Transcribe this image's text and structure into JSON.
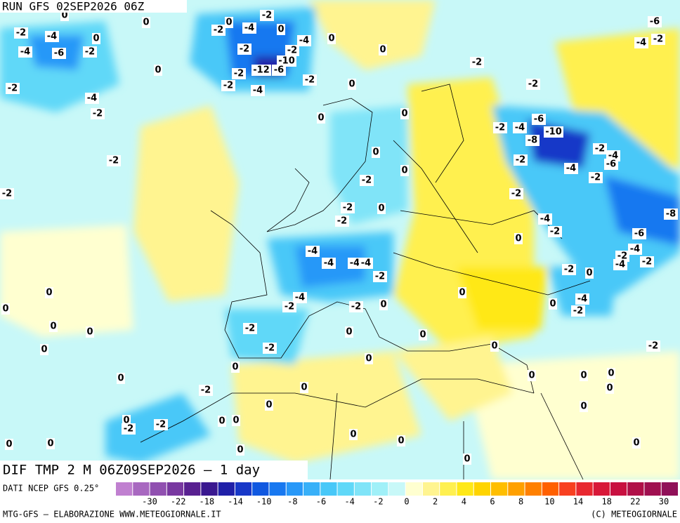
{
  "header": {
    "run": "RUN GFS 02SEP2026 06Z"
  },
  "map": {
    "title": "DIF TMP 2 M 06Z09SEP2026 — 1 day",
    "labels": [
      0,
      0,
      -2,
      -4,
      0,
      -4,
      -6,
      -2,
      0,
      -2,
      -4,
      -2,
      -2,
      -2,
      -2,
      0,
      -2,
      -4,
      0,
      -4,
      0,
      -2,
      -2,
      -10,
      -12,
      -6,
      -2,
      -2,
      -4,
      -2,
      0,
      0,
      -2,
      0,
      0,
      -2,
      -6,
      -4,
      -2,
      -2,
      -4,
      -6,
      -10,
      -8,
      -2,
      -4,
      -2,
      -4,
      -6,
      -2,
      0,
      0,
      -2,
      -2,
      -2,
      0,
      -2,
      -4,
      -2,
      0,
      -8,
      -6,
      -4,
      -2,
      -4,
      -2,
      -4,
      -4,
      -4,
      -4,
      -2,
      0,
      -2,
      -4,
      -2,
      -2,
      0,
      0,
      0,
      -4,
      -2,
      0,
      0,
      -2,
      0,
      0,
      0,
      0,
      0,
      -2,
      0,
      -2,
      0,
      0,
      0,
      0,
      0,
      0,
      -2,
      0,
      0,
      0,
      0,
      0,
      -2,
      -2,
      0,
      0,
      0,
      0,
      0,
      0,
      0,
      0,
      0
    ]
  },
  "legend": {
    "source": "DATI NCEP GFS 0.25°",
    "colors": [
      "#c080d0",
      "#a868c0",
      "#9050b0",
      "#7838a0",
      "#582090",
      "#3a1890",
      "#2020a8",
      "#1838c8",
      "#1058e0",
      "#1878f0",
      "#2898f8",
      "#38b0f8",
      "#48c8f8",
      "#60d8f8",
      "#80e4f8",
      "#a0f0f8",
      "#c8f8f8",
      "#ffffd0",
      "#fff490",
      "#fff050",
      "#ffe818",
      "#ffd400",
      "#ffbe00",
      "#ffa000",
      "#ff8000",
      "#ff6000",
      "#f84020",
      "#e82830",
      "#d81838",
      "#c81040",
      "#b01048",
      "#a01050",
      "#901058"
    ],
    "ticks": [
      -30,
      -22,
      -18,
      -14,
      -10,
      -8,
      -6,
      -4,
      -2,
      0,
      2,
      4,
      6,
      8,
      10,
      14,
      18,
      22,
      30
    ]
  },
  "footer": {
    "left": "MTG-GFS — ELABORAZIONE WWW.METEOGIORNALE.IT",
    "right": "(C) METEOGIORNALE"
  }
}
